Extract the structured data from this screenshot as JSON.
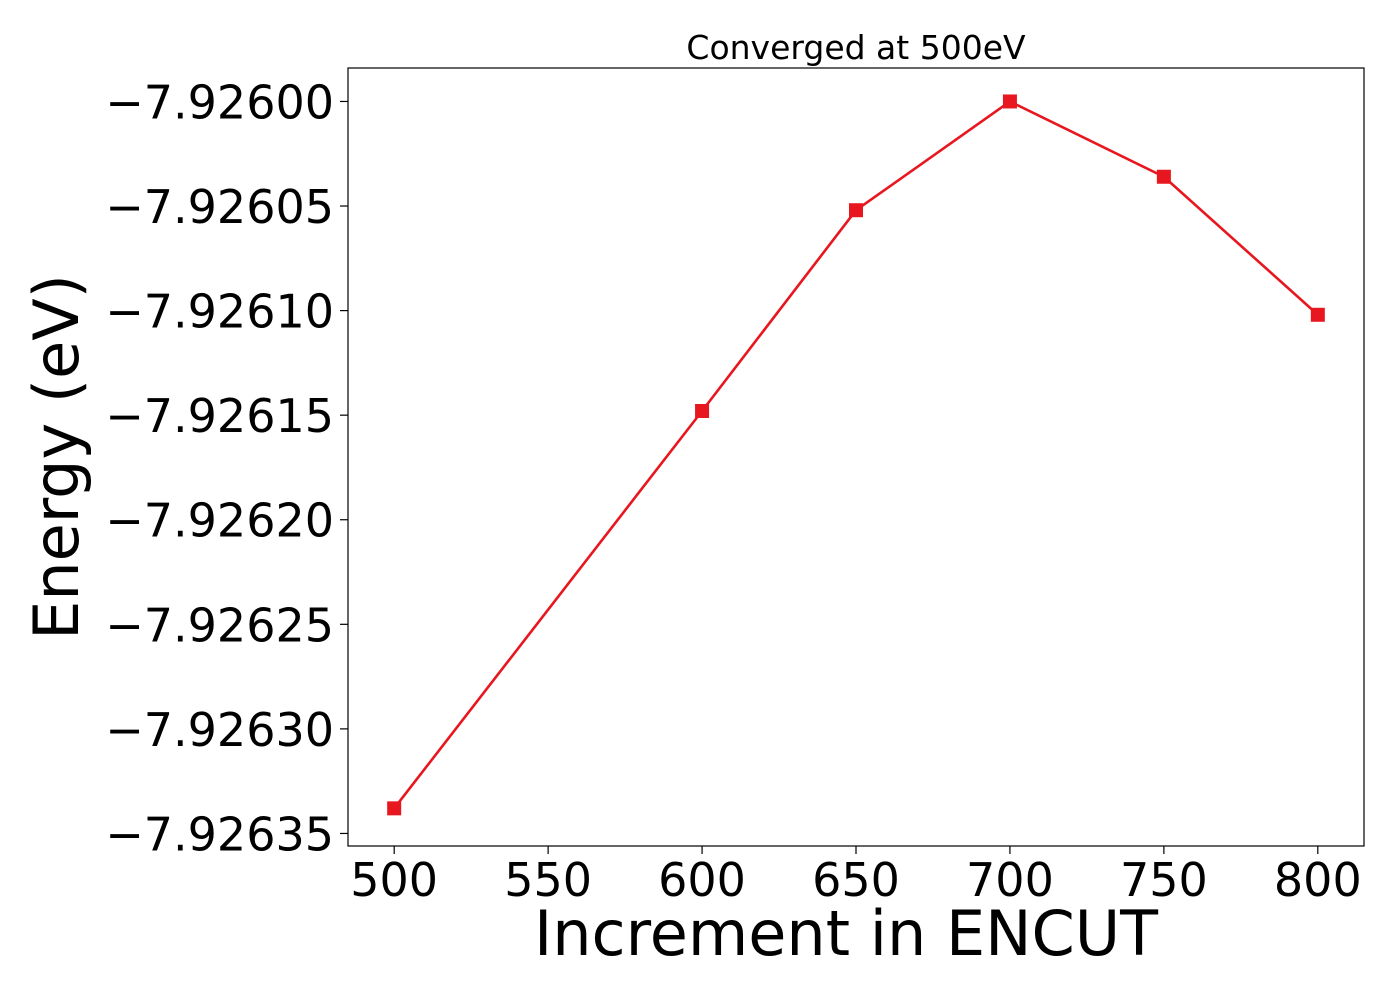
{
  "chart_data": {
    "type": "line",
    "title": "Converged at 500eV",
    "xlabel": "Increment in ENCUT",
    "ylabel": "Energy (eV)",
    "x": [
      500,
      600,
      650,
      700,
      750,
      800
    ],
    "xticks": [
      500,
      550,
      600,
      650,
      700,
      750,
      800
    ],
    "xlim": [
      485,
      815
    ],
    "yticks": [
      -7.926,
      -7.92605,
      -7.9261,
      -7.92615,
      -7.9262,
      -7.92625,
      -7.9263,
      -7.92635
    ],
    "ytick_labels": [
      "−7.92600",
      "−7.92605",
      "−7.92610",
      "−7.92615",
      "−7.92620",
      "−7.92625",
      "−7.92630",
      "−7.92635"
    ],
    "ylim": [
      -7.926356,
      -7.925984
    ],
    "grid": false,
    "series": [
      {
        "color": "#e8171f",
        "marker": "square",
        "values": [
          -7.926338,
          -7.926148,
          -7.926052,
          -7.926,
          -7.926036,
          -7.926102
        ]
      }
    ]
  }
}
